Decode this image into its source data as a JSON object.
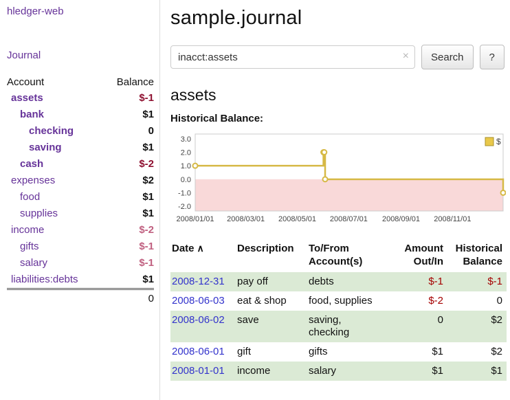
{
  "sidebar": {
    "app_title": "hledger-web",
    "journal_link": "Journal",
    "accounts": {
      "account_header": "Account",
      "balance_header": "Balance",
      "rows": [
        {
          "name": "assets",
          "balance": "$-1",
          "level": 0,
          "bold": true
        },
        {
          "name": "bank",
          "balance": "$1",
          "level": 1,
          "bold": true
        },
        {
          "name": "checking",
          "balance": "0",
          "level": 2,
          "bold": true
        },
        {
          "name": "saving",
          "balance": "$1",
          "level": 2,
          "bold": true
        },
        {
          "name": "cash",
          "balance": "$-2",
          "level": 1,
          "bold": true
        },
        {
          "name": "expenses",
          "balance": "$2",
          "level": 0,
          "bold": false
        },
        {
          "name": "food",
          "balance": "$1",
          "level": 1,
          "bold": false
        },
        {
          "name": "supplies",
          "balance": "$1",
          "level": 1,
          "bold": false
        },
        {
          "name": "income",
          "balance": "$-2",
          "level": 0,
          "bold": false
        },
        {
          "name": "gifts",
          "balance": "$-1",
          "level": 1,
          "bold": false
        },
        {
          "name": "salary",
          "balance": "$-1",
          "level": 1,
          "bold": false
        },
        {
          "name": "liabilities:debts",
          "balance": "$1",
          "level": 0,
          "bold": false
        }
      ],
      "total": "0"
    }
  },
  "main": {
    "title": "sample.journal",
    "search": {
      "value": "inacct:assets",
      "clear_icon": "×",
      "button_label": "Search",
      "help_label": "?"
    },
    "account_heading": "assets",
    "chart_label": "Historical Balance:",
    "register": {
      "headers": {
        "date": "Date",
        "sort_icon": "∧",
        "description": "Description",
        "accounts": "To/From Account(s)",
        "amount": "Amount Out/In",
        "balance": "Historical Balance"
      },
      "rows": [
        {
          "date": "2008-12-31",
          "description": "pay off",
          "accounts": "debts",
          "amount": "$-1",
          "balance": "$-1"
        },
        {
          "date": "2008-06-03",
          "description": "eat & shop",
          "accounts": "food, supplies",
          "amount": "$-2",
          "balance": "0"
        },
        {
          "date": "2008-06-02",
          "description": "save",
          "accounts": "saving, checking",
          "amount": "0",
          "balance": "$2"
        },
        {
          "date": "2008-06-01",
          "description": "gift",
          "accounts": "gifts",
          "amount": "$1",
          "balance": "$2"
        },
        {
          "date": "2008-01-01",
          "description": "income",
          "accounts": "salary",
          "amount": "$1",
          "balance": "$1"
        }
      ]
    }
  },
  "chart_data": {
    "type": "line",
    "step": true,
    "title": "Historical Balance",
    "series": [
      {
        "name": "$",
        "color": "#d6b945",
        "points": [
          [
            "2008-01-01",
            1
          ],
          [
            "2008-06-01",
            2
          ],
          [
            "2008-06-02",
            2
          ],
          [
            "2008-06-03",
            0
          ],
          [
            "2008-12-31",
            -1
          ]
        ]
      }
    ],
    "x_domain": [
      "2008-01-01",
      "2008-12-31"
    ],
    "xticks": [
      "2008/01/01",
      "2008/03/01",
      "2008/05/01",
      "2008/07/01",
      "2008/09/01",
      "2008/11/01"
    ],
    "yticks": [
      3.0,
      2.0,
      1.0,
      0.0,
      -1.0,
      -2.0
    ],
    "ylim": [
      -2,
      3
    ],
    "legend": {
      "label": "$",
      "position": "top-right",
      "swatch_color": "#e9c84a"
    },
    "negative_region_color": "#f9d9d9",
    "grid": false
  },
  "colors": {
    "link_purple": "#663399",
    "date_link_blue": "#3333cc",
    "negative_dark": "#8e1030",
    "negative_soft": "#c06080",
    "register_negative": "#a40000",
    "row_stripe_green": "#dbead5",
    "series_gold": "#d6b945"
  }
}
